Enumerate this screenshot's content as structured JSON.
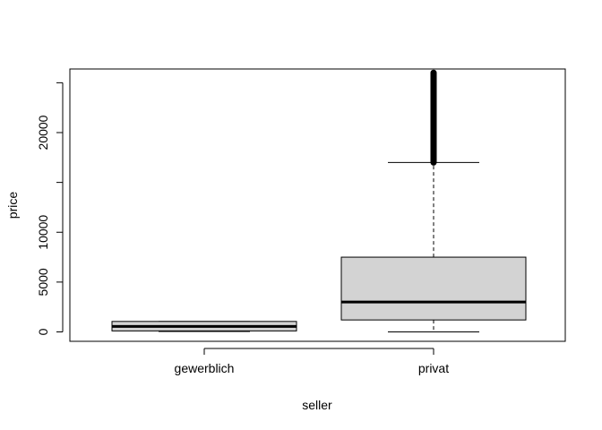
{
  "chart_data": {
    "type": "boxplot",
    "title": "",
    "xlabel": "seller",
    "ylabel": "price",
    "ylim": [
      -1000,
      26000
    ],
    "yticks": [
      0,
      5000,
      10000,
      20000
    ],
    "grid": false,
    "legend": "none",
    "colors": {
      "box_fill": "#d3d3d3",
      "line": "#000000",
      "background": "#ffffff"
    },
    "categories": [
      "gewerblich",
      "privat"
    ],
    "boxes": [
      {
        "category": "gewerblich",
        "whisker_low": 50,
        "q1": 100,
        "median": 550,
        "q3": 1050,
        "whisker_high": 1050,
        "outliers_from": null,
        "outliers_to": null
      },
      {
        "category": "privat",
        "whisker_low": 0,
        "q1": 1200,
        "median": 3000,
        "q3": 7500,
        "whisker_high": 17000,
        "outliers_from": 17000,
        "outliers_to": 26000
      }
    ]
  }
}
